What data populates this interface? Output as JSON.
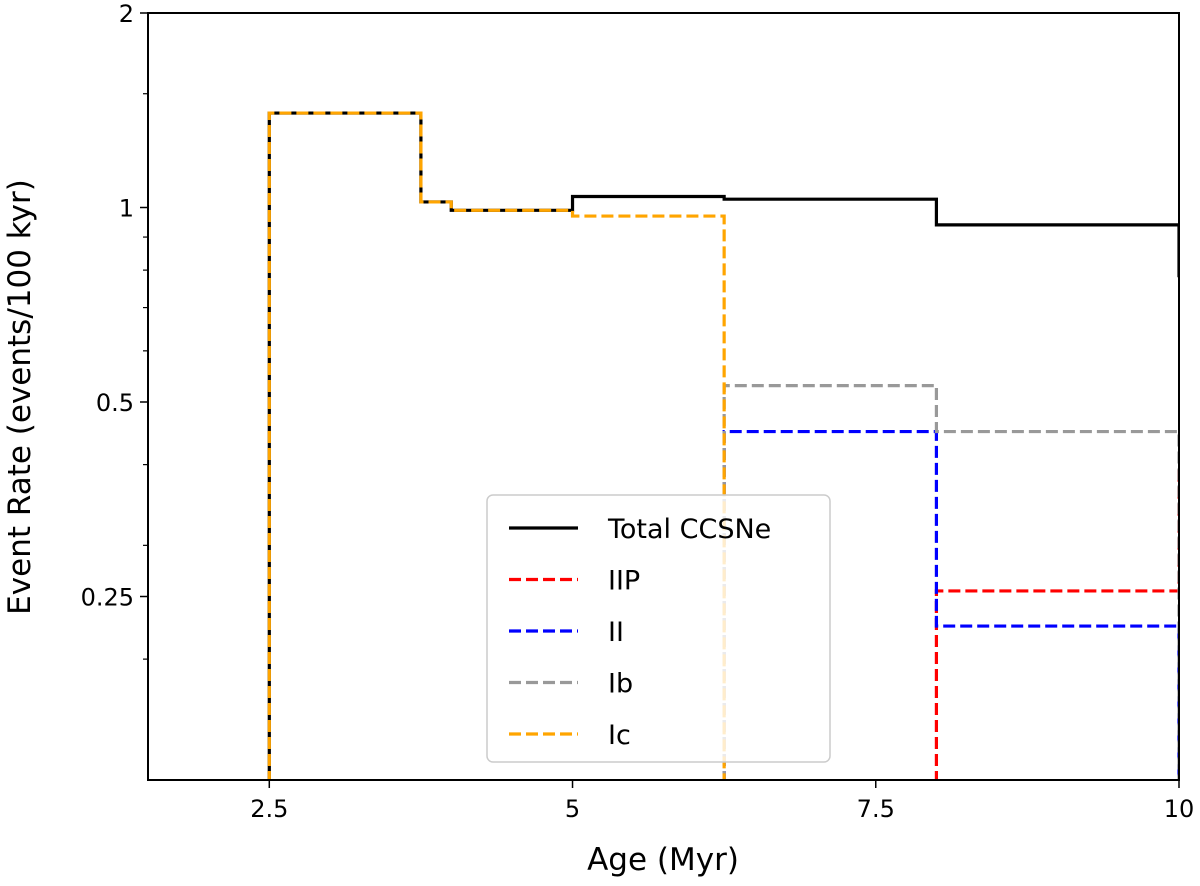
{
  "chart_data": {
    "type": "line",
    "style": "step",
    "title": "",
    "xlabel": "Age (Myr)",
    "ylabel": "Event Rate (events/100 kyr)",
    "xlim": [
      1.5,
      10
    ],
    "ylim": [
      0.13,
      2
    ],
    "yscale": "log",
    "grid": false,
    "legend_position": "lower-center",
    "x_ticks": [
      {
        "value": 2.5,
        "label": "2.5"
      },
      {
        "value": 5,
        "label": "5"
      },
      {
        "value": 7.5,
        "label": "7.5"
      },
      {
        "value": 10,
        "label": "10"
      }
    ],
    "y_ticks": [
      {
        "value": 0.25,
        "label": "0.25"
      },
      {
        "value": 0.5,
        "label": "0.5"
      },
      {
        "value": 1,
        "label": "1"
      },
      {
        "value": 2,
        "label": "2"
      }
    ],
    "series": [
      {
        "name": "Total CCSNe",
        "color": "#000000",
        "dash": "solid",
        "bins": [
          {
            "x0": 2.5,
            "x1": 3.75,
            "y": 1.4
          },
          {
            "x0": 3.75,
            "x1": 4.0,
            "y": 1.02
          },
          {
            "x0": 4.0,
            "x1": 5.0,
            "y": 0.99
          },
          {
            "x0": 5.0,
            "x1": 6.25,
            "y": 1.04
          },
          {
            "x0": 6.25,
            "x1": 8.0,
            "y": 1.03
          },
          {
            "x0": 8.0,
            "x1": 10.0,
            "y": 0.94
          }
        ],
        "end_value": 0.78
      },
      {
        "name": "IIP",
        "color": "#ff0000",
        "dash": "dashed",
        "bins": [
          {
            "x0": 8.0,
            "x1": 10.0,
            "y": 0.255
          }
        ],
        "end_value": 0.4
      },
      {
        "name": "II",
        "color": "#0000ff",
        "dash": "dashed",
        "bins": [
          {
            "x0": 6.25,
            "x1": 8.0,
            "y": 0.45
          },
          {
            "x0": 8.0,
            "x1": 10.0,
            "y": 0.225
          }
        ],
        "end_value": 0.13
      },
      {
        "name": "Ib",
        "color": "#999999",
        "dash": "dashed",
        "bins": [
          {
            "x0": 6.25,
            "x1": 8.0,
            "y": 0.53
          },
          {
            "x0": 8.0,
            "x1": 10.0,
            "y": 0.45
          }
        ],
        "end_value": 0.13
      },
      {
        "name": "Ic",
        "color": "#ffa500",
        "dash": "dashed",
        "bins": [
          {
            "x0": 2.5,
            "x1": 3.75,
            "y": 1.4
          },
          {
            "x0": 3.75,
            "x1": 4.0,
            "y": 1.02
          },
          {
            "x0": 4.0,
            "x1": 5.0,
            "y": 0.99
          },
          {
            "x0": 5.0,
            "x1": 6.25,
            "y": 0.97
          }
        ],
        "end_value": 0.13
      }
    ]
  }
}
